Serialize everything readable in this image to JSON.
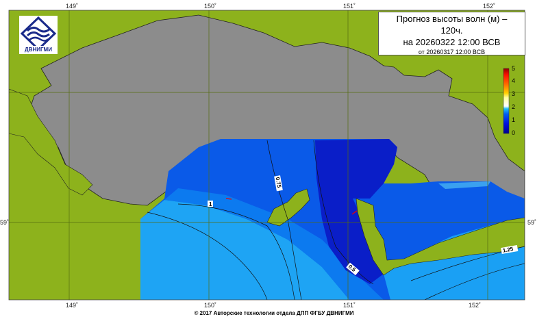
{
  "title": {
    "line1": "Прогноз высоты волн (м) –",
    "line2": "120ч.",
    "line3": "на 20260322 12:00 ВСВ",
    "line4": "от 20260317 12:00 ВСВ"
  },
  "logo": {
    "text": "ДВНИГМИ"
  },
  "axes": {
    "lon_ticks": [
      "149˚",
      "150˚",
      "151˚",
      "152˚"
    ],
    "lat_ticks": [
      "59˚"
    ]
  },
  "colorbar": {
    "ticks": [
      "0",
      "1",
      "2",
      "3",
      "4",
      "5"
    ],
    "unit": "м",
    "range": [
      0,
      5
    ]
  },
  "contour_labels": [
    "1",
    "0.75",
    "0.5",
    "1.25"
  ],
  "colors": {
    "land": "#8c8c8c",
    "background": "#8db21c",
    "wave_low": "#0a1ec8",
    "wave_mid": "#0a5ae8",
    "wave_high": "#1ea4f4"
  },
  "footer": "© 2017 Авторские технологии отдела ДПП ФГБУ ДВНИГМИ"
}
